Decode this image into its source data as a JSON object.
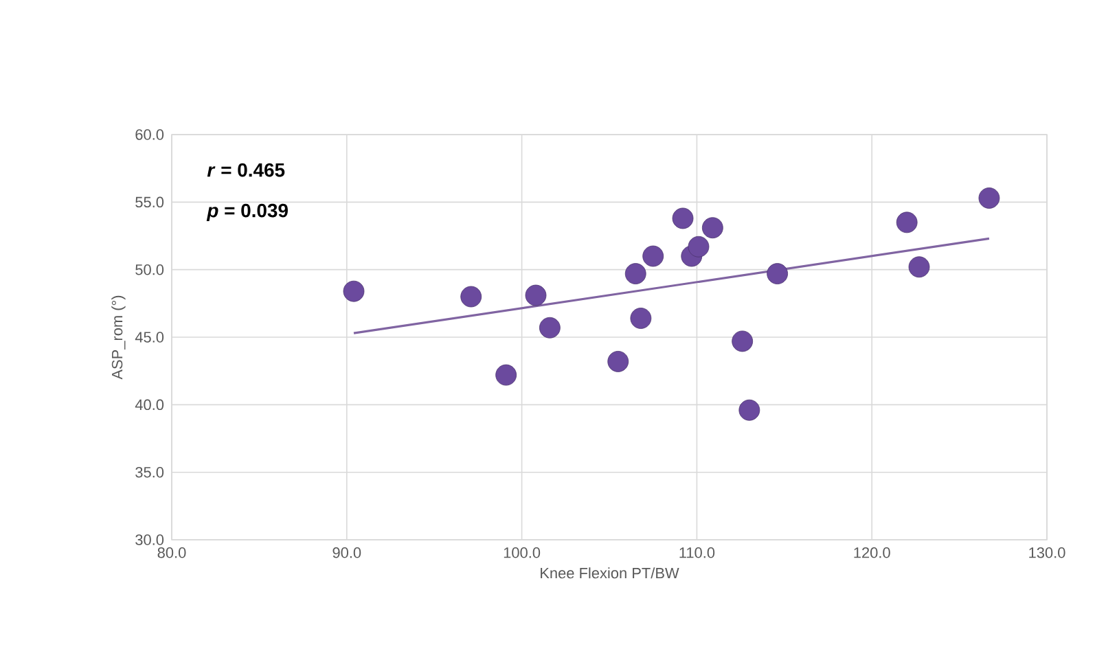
{
  "chart_data": {
    "type": "scatter",
    "xlabel": "Knee Flexion PT/BW",
    "ylabel": "ASP_rom (°)",
    "annotations": [
      "*r* = 0.465",
      "*p* = 0.039"
    ],
    "series": [
      {
        "color": "#6b4a9e",
        "marker": "circle",
        "x": [
          90.4,
          97.1,
          100.8,
          101.6,
          99.1,
          105.5,
          106.5,
          106.8,
          107.5,
          109.2,
          109.7,
          110.1,
          110.9,
          112.6,
          113.0,
          114.6,
          122.0,
          122.7,
          126.7
        ],
        "values": [
          48.4,
          48.0,
          48.1,
          45.7,
          42.2,
          43.2,
          49.7,
          46.4,
          51.0,
          53.8,
          51.0,
          51.7,
          53.1,
          44.7,
          39.6,
          49.7,
          53.5,
          50.2,
          55.3
        ]
      },
      {
        "type": "line",
        "color": "#8064a2",
        "x": [
          90.4,
          126.7
        ],
        "values": [
          45.3,
          52.3
        ]
      }
    ],
    "xlim": [
      80,
      130
    ],
    "ylim": [
      30,
      60
    ],
    "xticks": [
      {
        "value": 80,
        "label": "80.0"
      },
      {
        "value": 90,
        "label": "90.0"
      },
      {
        "value": 100,
        "label": "100.0"
      },
      {
        "value": 110,
        "label": "110.0"
      },
      {
        "value": 120,
        "label": "120.0"
      },
      {
        "value": 130,
        "label": "130.0"
      }
    ],
    "yticks": [
      {
        "value": 30,
        "label": "30.0"
      },
      {
        "value": 35,
        "label": "35.0"
      },
      {
        "value": 40,
        "label": "40.0"
      },
      {
        "value": 45,
        "label": "45.0"
      },
      {
        "value": 50,
        "label": "50.0"
      },
      {
        "value": 55,
        "label": "55.0"
      },
      {
        "value": 60,
        "label": "60.0"
      }
    ],
    "grid": true
  }
}
